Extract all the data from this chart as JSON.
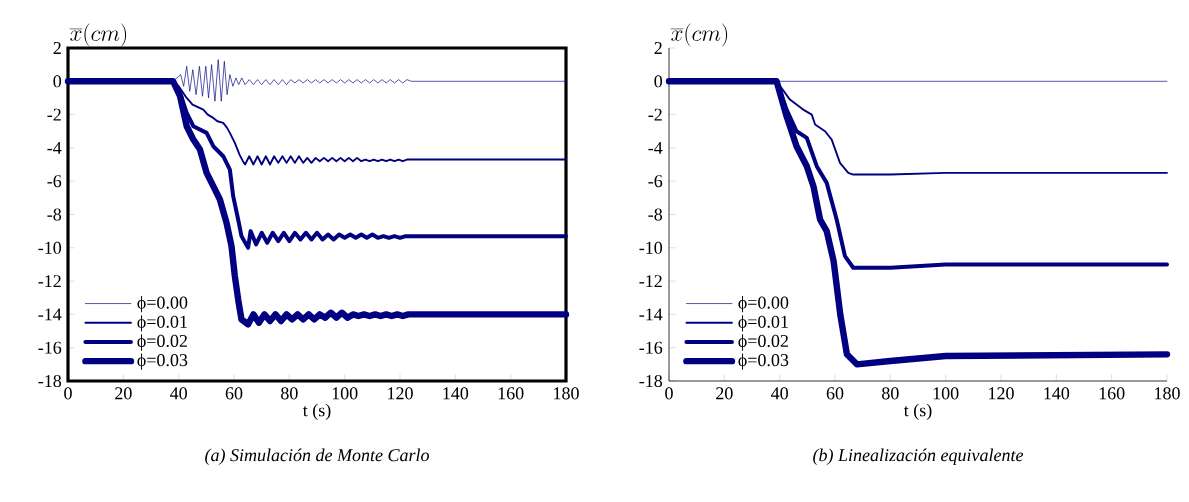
{
  "chart_data": [
    {
      "type": "line",
      "title": "(a) Simulación de Monte Carlo",
      "xlabel": "t (s)",
      "ylabel": "\\overline{x}(cm)",
      "xlim": [
        0,
        180
      ],
      "ylim": [
        -18,
        2
      ],
      "xticks": [
        0,
        20,
        40,
        60,
        80,
        100,
        120,
        140,
        160,
        180
      ],
      "yticks": [
        -18,
        -16,
        -14,
        -12,
        -10,
        -8,
        -6,
        -4,
        -2,
        0,
        2
      ],
      "legend": "bottom left",
      "series": [
        {
          "name": "ϕ=0.00",
          "color": "#000080",
          "x": [
            0,
            38,
            40.7,
            41.8,
            42.9,
            44,
            45.1,
            46.3,
            47.5,
            48.6,
            49.8,
            50.8,
            51.9,
            53.1,
            54.3,
            55.4,
            56.5,
            57.5,
            58.5,
            59.6,
            60.7,
            61.7,
            62.8,
            64,
            65.5,
            67,
            68.5,
            70,
            71.5,
            73,
            74.5,
            76,
            77.5,
            79,
            80.5,
            82,
            83.5,
            85,
            86.5,
            88,
            89.5,
            91,
            92.5,
            94,
            95.5,
            97,
            98.5,
            100,
            101.5,
            103,
            104.5,
            106,
            107.5,
            109,
            110.5,
            112,
            113.5,
            115,
            116.5,
            118,
            119.5,
            121,
            122.5,
            124,
            180
          ],
          "values": [
            0,
            0,
            0.4,
            -0.3,
            0.9,
            -0.6,
            0.7,
            -0.8,
            0.9,
            -0.9,
            0.9,
            -1.0,
            1.0,
            -1.2,
            1.3,
            -1.2,
            1.2,
            -0.8,
            0.4,
            -0.3,
            0.2,
            -0.2,
            0.2,
            -0.2,
            0.1,
            -0.2,
            0.1,
            -0.2,
            0.1,
            -0.2,
            0.1,
            -0.2,
            0.1,
            -0.2,
            0.1,
            -0.1,
            0.1,
            -0.1,
            0.1,
            -0.1,
            0.1,
            -0.1,
            0.1,
            -0.1,
            0.1,
            -0.1,
            0.1,
            -0.1,
            0.1,
            -0.1,
            0.1,
            -0.1,
            0.1,
            -0.1,
            0.1,
            -0.1,
            0.1,
            -0.1,
            0.1,
            -0.1,
            0.1,
            -0.1,
            0.1,
            0,
            0
          ]
        },
        {
          "name": "ϕ=0.01",
          "color": "#000080",
          "x": [
            0,
            38,
            40,
            42.9,
            45,
            48.9,
            50.5,
            52.5,
            54,
            56.1,
            57.5,
            58.5,
            60.3,
            62,
            63.2,
            64,
            65.5,
            67,
            68.5,
            70,
            71.5,
            73,
            74.5,
            76,
            77.5,
            79,
            80.5,
            82,
            83.5,
            85,
            86.5,
            88,
            89.5,
            91,
            92.5,
            94,
            95.5,
            97,
            98.5,
            100,
            101.5,
            103,
            104.5,
            106,
            107.5,
            109,
            110.5,
            112,
            113.5,
            115,
            116.5,
            118,
            119.5,
            121,
            122.5,
            124,
            180
          ],
          "values": [
            0,
            0,
            -0.3,
            -1.0,
            -1.4,
            -1.7,
            -2.0,
            -2.2,
            -2.4,
            -2.5,
            -2.8,
            -3.1,
            -3.7,
            -4.4,
            -4.8,
            -5.0,
            -4.5,
            -5.0,
            -4.5,
            -5.0,
            -4.5,
            -5.0,
            -4.5,
            -4.9,
            -4.5,
            -4.9,
            -4.5,
            -4.9,
            -4.5,
            -4.9,
            -4.6,
            -4.9,
            -4.6,
            -4.8,
            -4.6,
            -4.8,
            -4.6,
            -4.8,
            -4.6,
            -4.8,
            -4.6,
            -4.8,
            -4.6,
            -4.8,
            -4.7,
            -4.8,
            -4.7,
            -4.8,
            -4.7,
            -4.8,
            -4.7,
            -4.8,
            -4.7,
            -4.8,
            -4.7,
            -4.7,
            -4.7
          ]
        },
        {
          "name": "ϕ=0.02",
          "color": "#000080",
          "x": [
            0,
            38,
            40.5,
            42.9,
            45.3,
            47.7,
            50.1,
            52.5,
            56.1,
            58.5,
            59.7,
            61.5,
            62.7,
            65.1,
            66,
            68,
            70,
            72,
            74,
            76,
            78,
            80,
            82,
            84,
            86,
            88,
            90,
            92,
            94,
            96,
            98,
            100,
            102,
            104,
            106,
            108,
            110,
            112,
            114,
            116,
            118,
            120,
            122,
            124,
            180
          ],
          "values": [
            0,
            0,
            -0.7,
            -1.9,
            -2.7,
            -2.9,
            -3.1,
            -3.9,
            -4.5,
            -5.3,
            -6.9,
            -8.3,
            -9.3,
            -10.0,
            -9.0,
            -9.8,
            -9.1,
            -9.7,
            -9.1,
            -9.6,
            -9.1,
            -9.6,
            -9.1,
            -9.5,
            -9.1,
            -9.5,
            -9.1,
            -9.5,
            -9.2,
            -9.5,
            -9.2,
            -9.4,
            -9.2,
            -9.4,
            -9.2,
            -9.4,
            -9.2,
            -9.4,
            -9.3,
            -9.4,
            -9.3,
            -9.4,
            -9.3,
            -9.3,
            -9.3
          ]
        },
        {
          "name": "ϕ=0.03",
          "color": "#000080",
          "x": [
            0,
            38,
            40.5,
            42.9,
            45.3,
            47.7,
            50.1,
            52.5,
            54.9,
            57.3,
            59.1,
            60.3,
            61.5,
            62.7,
            65.1,
            67,
            69,
            71,
            73,
            75,
            77,
            79,
            81,
            83,
            85,
            87,
            89,
            91,
            93,
            95,
            97,
            99,
            101,
            103,
            105,
            107,
            109,
            111,
            113,
            115,
            117,
            119,
            121,
            123,
            125,
            180
          ],
          "values": [
            0,
            0,
            -0.9,
            -2.7,
            -3.5,
            -4.1,
            -5.5,
            -6.3,
            -7.1,
            -8.5,
            -9.9,
            -11.7,
            -13.1,
            -14.3,
            -14.6,
            -14.0,
            -14.5,
            -14.0,
            -14.4,
            -14.0,
            -14.4,
            -14.0,
            -14.3,
            -14.0,
            -14.3,
            -14.0,
            -14.3,
            -14.0,
            -14.2,
            -13.9,
            -14.2,
            -13.9,
            -14.2,
            -14.0,
            -14.1,
            -14.0,
            -14.1,
            -14.0,
            -14.1,
            -14.0,
            -14.1,
            -14.0,
            -14.1,
            -14.0,
            -14.0,
            -14.0
          ]
        }
      ]
    },
    {
      "type": "line",
      "title": "(b) Linealización equivalente",
      "xlabel": "t (s)",
      "ylabel": "\\overline{x}(cm)",
      "xlim": [
        0,
        180
      ],
      "ylim": [
        -18,
        2
      ],
      "xticks": [
        0,
        20,
        40,
        60,
        80,
        100,
        120,
        140,
        160,
        180
      ],
      "yticks": [
        -18,
        -16,
        -14,
        -12,
        -10,
        -8,
        -6,
        -4,
        -2,
        0,
        2
      ],
      "legend": "bottom left",
      "series": [
        {
          "name": "ϕ=0.00",
          "color": "#000080",
          "x": [
            0,
            180
          ],
          "values": [
            0,
            0
          ]
        },
        {
          "name": "ϕ=0.01",
          "color": "#000080",
          "x": [
            0,
            38.9,
            43.7,
            48.5,
            51.6,
            52.8,
            56.4,
            58.8,
            61.8,
            64.8,
            66.6,
            80,
            100,
            180
          ],
          "values": [
            0,
            0,
            -1.1,
            -1.7,
            -2.0,
            -2.6,
            -3.0,
            -3.5,
            -4.9,
            -5.5,
            -5.6,
            -5.6,
            -5.5,
            -5.5
          ]
        },
        {
          "name": "ϕ=0.02",
          "color": "#000080",
          "x": [
            0,
            38.9,
            42.5,
            46.1,
            49.8,
            53.4,
            57.0,
            60.6,
            63.6,
            66.6,
            80,
            100,
            180
          ],
          "values": [
            0,
            0,
            -1.7,
            -3.0,
            -3.4,
            -5.1,
            -6.1,
            -8.3,
            -10.5,
            -11.2,
            -11.2,
            -11.0,
            -11.0
          ]
        },
        {
          "name": "ϕ=0.03",
          "color": "#000080",
          "x": [
            0,
            38.9,
            42.5,
            46.1,
            49.8,
            52.2,
            54.6,
            57.0,
            59.5,
            61.9,
            64.3,
            67.9,
            80,
            100,
            180
          ],
          "values": [
            0,
            0,
            -2.1,
            -3.9,
            -5.1,
            -6.3,
            -8.3,
            -9.0,
            -10.8,
            -14.0,
            -16.4,
            -17.0,
            -16.8,
            -16.5,
            -16.4
          ]
        }
      ]
    }
  ]
}
